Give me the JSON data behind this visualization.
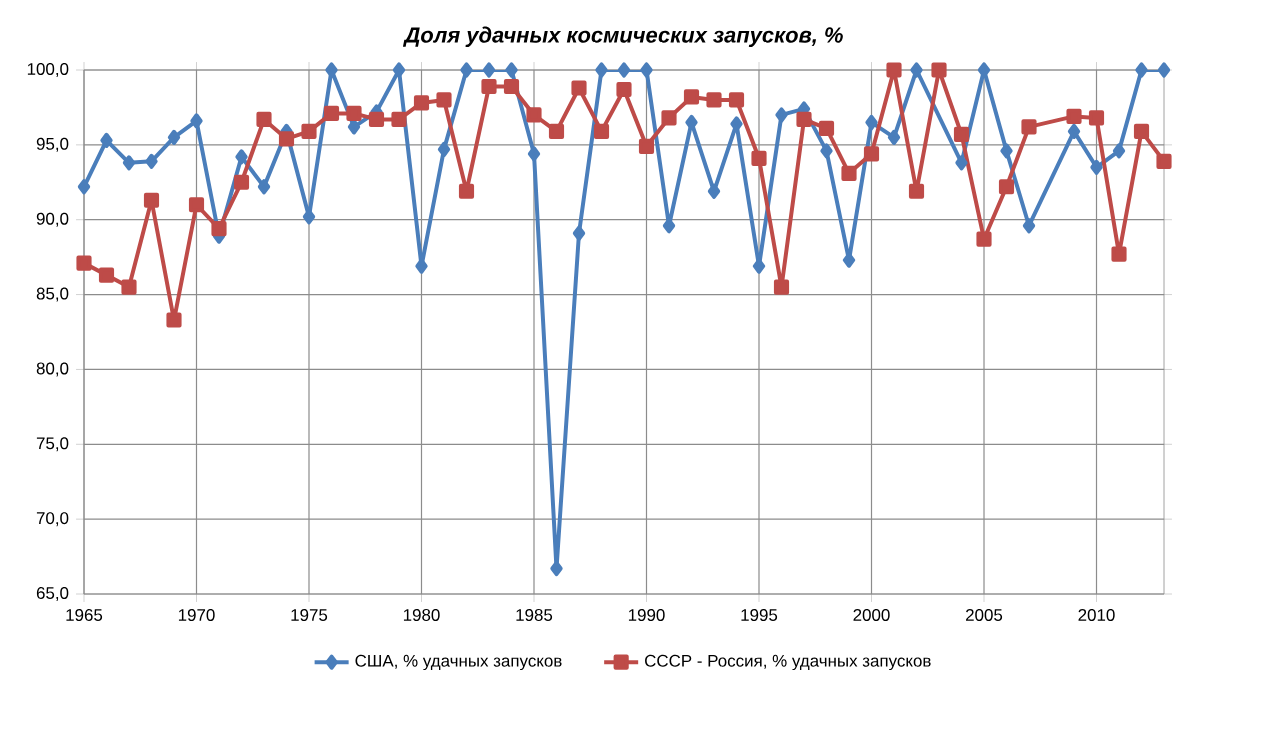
{
  "chart_data": {
    "type": "line",
    "title": "Доля удачных космических запусков, %",
    "x": [
      1965,
      1966,
      1967,
      1968,
      1969,
      1970,
      1971,
      1972,
      1973,
      1974,
      1975,
      1976,
      1977,
      1978,
      1979,
      1980,
      1981,
      1982,
      1983,
      1984,
      1985,
      1986,
      1987,
      1988,
      1989,
      1990,
      1991,
      1992,
      1993,
      1994,
      1995,
      1996,
      1997,
      1998,
      1999,
      2000,
      2001,
      2002,
      2003,
      2004,
      2005,
      2006,
      2007,
      2009,
      2010,
      2011,
      2012,
      2013
    ],
    "series": [
      {
        "name": "США,  % удачных запусков",
        "color": "#4a7ebb",
        "marker": "diamond",
        "values": [
          92.2,
          95.3,
          93.8,
          93.9,
          95.5,
          96.6,
          88.9,
          94.2,
          92.2,
          95.9,
          90.2,
          100,
          96.2,
          97.2,
          100,
          86.9,
          94.7,
          100,
          100,
          100,
          94.4,
          66.7,
          89.1,
          100,
          100,
          100,
          89.6,
          96.5,
          91.9,
          96.4,
          86.9,
          97.0,
          97.4,
          94.6,
          87.3,
          96.5,
          95.5,
          100,
          null,
          93.8,
          100,
          94.6,
          89.6,
          95.9,
          93.5,
          94.6,
          100,
          100
        ]
      },
      {
        "name": "СССР - Россия, % удачных запусков",
        "color": "#be4b48",
        "marker": "square",
        "values": [
          87.1,
          86.3,
          85.5,
          91.3,
          83.3,
          91.0,
          89.4,
          92.5,
          96.7,
          95.4,
          95.9,
          97.1,
          97.1,
          96.7,
          96.7,
          97.8,
          98.0,
          91.9,
          98.9,
          98.9,
          97.0,
          95.9,
          98.8,
          95.9,
          98.7,
          94.9,
          96.8,
          98.2,
          98.0,
          98.0,
          94.1,
          85.5,
          96.7,
          96.1,
          93.1,
          94.4,
          100,
          91.9,
          100,
          95.7,
          88.7,
          92.2,
          96.2,
          96.9,
          96.8,
          87.7,
          95.9,
          93.9
        ]
      }
    ],
    "xlim": [
      1965,
      2013
    ],
    "xticks": [
      1965,
      1970,
      1975,
      1980,
      1985,
      1990,
      1995,
      2000,
      2005,
      2010
    ],
    "ylim": [
      65,
      100
    ],
    "yticks": [
      {
        "value": 65,
        "label": "65,0"
      },
      {
        "value": 70,
        "label": "70,0"
      },
      {
        "value": 75,
        "label": "75,0"
      },
      {
        "value": 80,
        "label": "80,0"
      },
      {
        "value": 85,
        "label": "85,0"
      },
      {
        "value": 90,
        "label": "90,0"
      },
      {
        "value": 95,
        "label": "95,0"
      },
      {
        "value": 100,
        "label": "100,0"
      }
    ],
    "grid": true,
    "legend": "bottom"
  }
}
